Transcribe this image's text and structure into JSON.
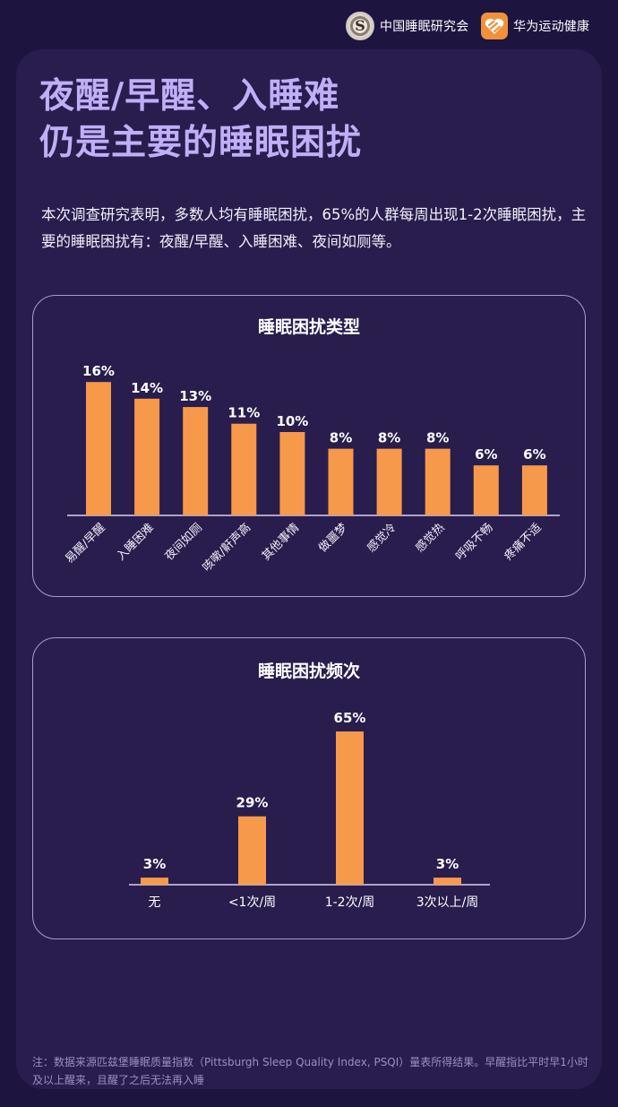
{
  "header": {
    "brand_1": {
      "name": "中国睡眠研究会",
      "icon": "csrs-logo-icon"
    },
    "brand_2": {
      "name": "华为运动健康",
      "icon": "huawei-health-logo-icon",
      "color": "#f0913a"
    }
  },
  "title": {
    "line1": "夜醒/早醒、入睡难",
    "line2": "仍是主要的睡眠困扰",
    "color": "#c0aef7"
  },
  "intro": "本次调查研究表明，多数人均有睡眠困扰，65%的人群每周出现1-2次睡眠困扰，主要的睡眠困扰有：夜醒/早醒、入睡困难、夜间如厕等。",
  "footnote": "注：数据来源匹兹堡睡眠质量指数（Pittsburgh Sleep Quality Index, PSQI）量表所得结果。早醒指比平时早1小时及以上醒来，且醒了之后无法再入睡",
  "colors": {
    "bar": "#f7994a",
    "background": "#1e1440",
    "card": "#281d4d",
    "panel_border": "#a99ad6"
  },
  "chart_data": [
    {
      "type": "bar",
      "title": "睡眠困扰类型",
      "categories": [
        "易醒/早醒",
        "入睡困难",
        "夜间如厕",
        "咳嗽/鼾声高",
        "其他事情",
        "做噩梦",
        "感觉冷",
        "感觉热",
        "呼吸不畅",
        "疼痛不适"
      ],
      "values": [
        16,
        14,
        13,
        11,
        10,
        8,
        8,
        8,
        6,
        6
      ],
      "labels": [
        "16%",
        "14%",
        "13%",
        "11%",
        "10%",
        "8%",
        "8%",
        "8%",
        "6%",
        "6%"
      ],
      "xlabel": "",
      "ylabel": "",
      "unit": "%",
      "grid": false,
      "legend": false,
      "x_tick_rotation": -45
    },
    {
      "type": "bar",
      "title": "睡眠困扰频次",
      "categories": [
        "无",
        "<1次/周",
        "1-2次/周",
        "3次以上/周"
      ],
      "values": [
        3,
        29,
        65,
        3
      ],
      "labels": [
        "3%",
        "29%",
        "65%",
        "3%"
      ],
      "xlabel": "",
      "ylabel": "",
      "unit": "%",
      "grid": false,
      "legend": false
    }
  ]
}
